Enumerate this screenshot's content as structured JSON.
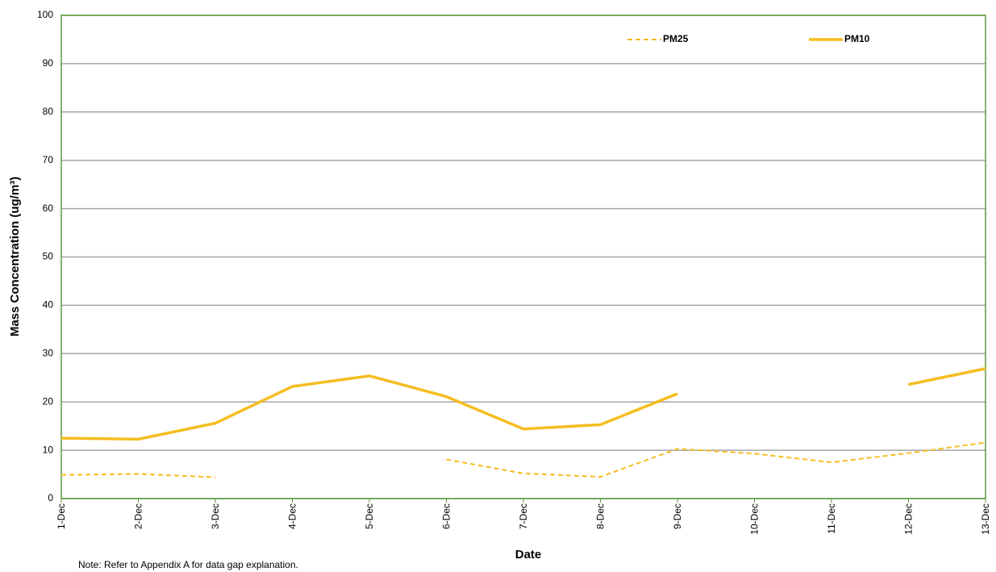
{
  "chart_data": {
    "type": "line",
    "x_label": "Date",
    "y_label": "Mass Concentration (ug/m³)",
    "note": "Note: Refer to Appendix A for data gap explanation.",
    "categories": [
      "1-Dec",
      "2-Dec",
      "3-Dec",
      "4-Dec",
      "5-Dec",
      "6-Dec",
      "7-Dec",
      "8-Dec",
      "9-Dec",
      "10-Dec",
      "11-Dec",
      "12-Dec",
      "13-Dec"
    ],
    "series": [
      {
        "name": "PM25",
        "color": "#f5bd1f",
        "dashed": true,
        "values": [
          4.9,
          5.1,
          4.4,
          null,
          null,
          8.1,
          5.2,
          4.5,
          10.3,
          9.3,
          7.5,
          9.4,
          11.6
        ]
      },
      {
        "name": "PM10",
        "color": "#f5bd1f",
        "dashed": false,
        "values": [
          12.5,
          12.3,
          15.6,
          23.2,
          25.4,
          21.1,
          14.4,
          15.3,
          21.7,
          null,
          null,
          23.6,
          26.9
        ]
      }
    ],
    "ylim": [
      0,
      100
    ],
    "yticks": [
      0,
      10,
      20,
      30,
      40,
      50,
      60,
      70,
      80,
      90,
      100
    ],
    "grid": true,
    "legend": "top-right"
  }
}
